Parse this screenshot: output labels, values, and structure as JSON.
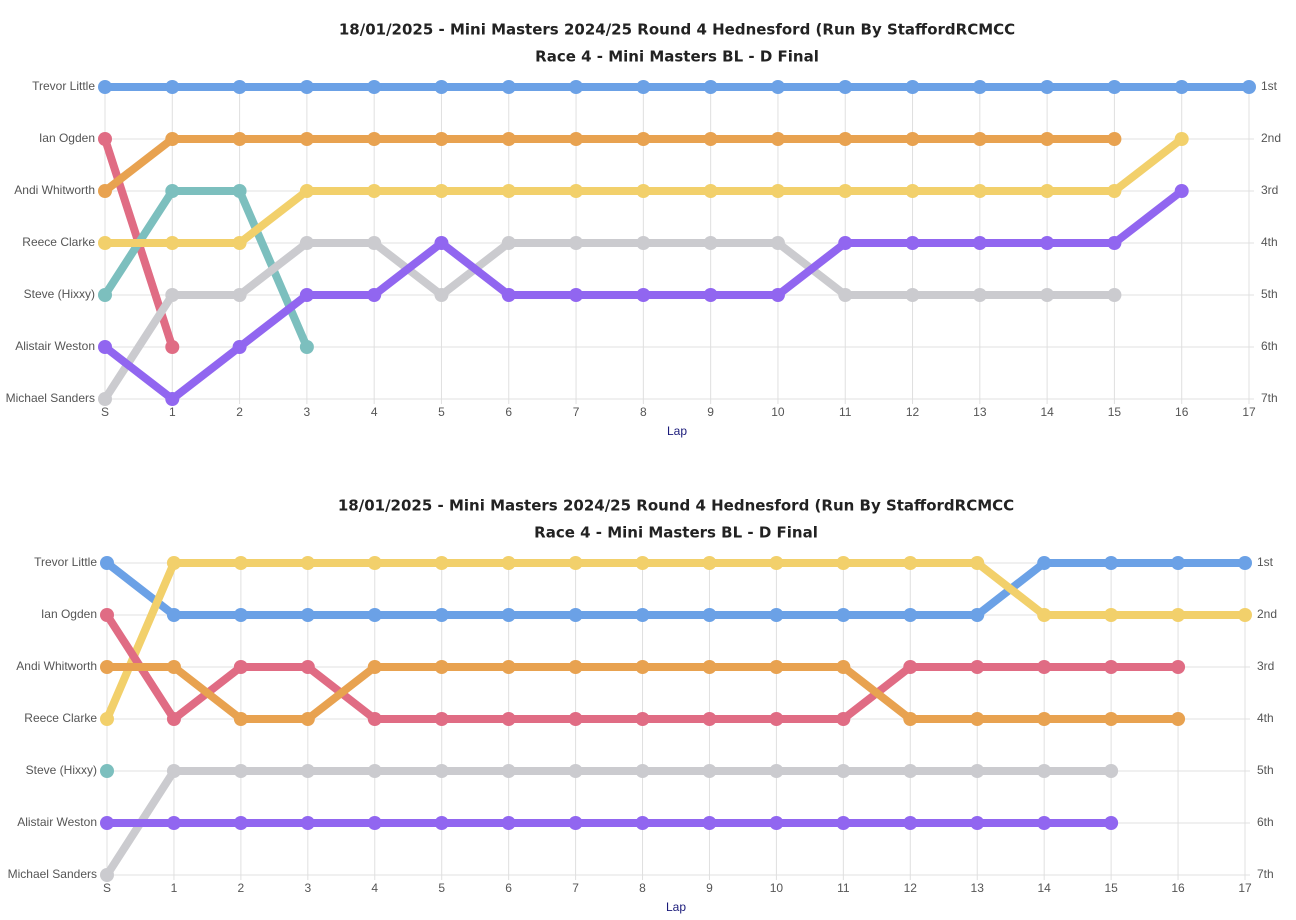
{
  "chart_data": [
    {
      "type": "line",
      "title": "18/01/2025 - Mini Masters 2024/25 Round 4 Hednesford (Run By StaffordRCMCC",
      "subtitle": "Race 4 - Mini Masters BL - D Final",
      "x_label": "Lap",
      "categories": [
        "S",
        "1",
        "2",
        "3",
        "4",
        "5",
        "6",
        "7",
        "8",
        "9",
        "10",
        "11",
        "12",
        "13",
        "14",
        "15",
        "16",
        "17"
      ],
      "ylim": [
        7,
        1
      ],
      "yticks": [
        {
          "value": 1,
          "label": "Trevor Little"
        },
        {
          "value": 2,
          "label": "Ian Ogden"
        },
        {
          "value": 3,
          "label": "Andi Whitworth"
        },
        {
          "value": 4,
          "label": "Reece Clarke"
        },
        {
          "value": 5,
          "label": "Steve (Hixxy)"
        },
        {
          "value": 6,
          "label": "Alistair Weston"
        },
        {
          "value": 7,
          "label": "Michael Sanders"
        }
      ],
      "y2lim": [
        7,
        1
      ],
      "y2ticks": [
        {
          "value": 1,
          "label": "1st"
        },
        {
          "value": 2,
          "label": "2nd"
        },
        {
          "value": 3,
          "label": "3rd"
        },
        {
          "value": 4,
          "label": "4th"
        },
        {
          "value": 5,
          "label": "5th"
        },
        {
          "value": 6,
          "label": "6th"
        },
        {
          "value": 7,
          "label": "7th"
        }
      ],
      "grid": true,
      "series": [
        {
          "color": "#6ba1e6",
          "values": [
            1,
            1,
            1,
            1,
            1,
            1,
            1,
            1,
            1,
            1,
            1,
            1,
            1,
            1,
            1,
            1,
            1,
            1
          ]
        },
        {
          "color": "#e06c84",
          "values": [
            2,
            6,
            null,
            null,
            null,
            null,
            null,
            null,
            null,
            null,
            null,
            null,
            null,
            null,
            null,
            null,
            null,
            null
          ]
        },
        {
          "color": "#e8a250",
          "values": [
            3,
            2,
            2,
            2,
            2,
            2,
            2,
            2,
            2,
            2,
            2,
            2,
            2,
            2,
            2,
            2,
            null,
            null
          ]
        },
        {
          "color": "#7cbfbe",
          "values": [
            5,
            3,
            3,
            6,
            null,
            null,
            null,
            null,
            null,
            null,
            null,
            null,
            null,
            null,
            null,
            null,
            null,
            null
          ]
        },
        {
          "color": "#f2d06b",
          "values": [
            4,
            4,
            4,
            3,
            3,
            3,
            3,
            3,
            3,
            3,
            3,
            3,
            3,
            3,
            3,
            3,
            2,
            null
          ]
        },
        {
          "color": "#cbcbcf",
          "values": [
            7,
            5,
            5,
            4,
            4,
            5,
            4,
            4,
            4,
            4,
            4,
            5,
            5,
            5,
            5,
            5,
            null,
            null
          ]
        },
        {
          "color": "#9166f0",
          "values": [
            6,
            7,
            6,
            5,
            5,
            4,
            5,
            5,
            5,
            5,
            5,
            4,
            4,
            4,
            4,
            4,
            3,
            null
          ]
        }
      ]
    },
    {
      "type": "line",
      "title": "18/01/2025 - Mini Masters 2024/25 Round 4 Hednesford (Run By StaffordRCMCC",
      "subtitle": "Race 4 - Mini Masters BL - D Final",
      "x_label": "Lap",
      "categories": [
        "S",
        "1",
        "2",
        "3",
        "4",
        "5",
        "6",
        "7",
        "8",
        "9",
        "10",
        "11",
        "12",
        "13",
        "14",
        "15",
        "16",
        "17"
      ],
      "ylim": [
        7,
        1
      ],
      "yticks": [
        {
          "value": 1,
          "label": "Trevor Little"
        },
        {
          "value": 2,
          "label": "Ian Ogden"
        },
        {
          "value": 3,
          "label": "Andi Whitworth"
        },
        {
          "value": 4,
          "label": "Reece Clarke"
        },
        {
          "value": 5,
          "label": "Steve (Hixxy)"
        },
        {
          "value": 6,
          "label": "Alistair Weston"
        },
        {
          "value": 7,
          "label": "Michael Sanders"
        }
      ],
      "y2lim": [
        7,
        1
      ],
      "y2ticks": [
        {
          "value": 1,
          "label": "1st"
        },
        {
          "value": 2,
          "label": "2nd"
        },
        {
          "value": 3,
          "label": "3rd"
        },
        {
          "value": 4,
          "label": "4th"
        },
        {
          "value": 5,
          "label": "5th"
        },
        {
          "value": 6,
          "label": "6th"
        },
        {
          "value": 7,
          "label": "7th"
        }
      ],
      "grid": true,
      "series": [
        {
          "color": "#6ba1e6",
          "values": [
            1,
            2,
            2,
            2,
            2,
            2,
            2,
            2,
            2,
            2,
            2,
            2,
            2,
            2,
            1,
            1,
            1,
            1
          ]
        },
        {
          "color": "#f2d06b",
          "values": [
            4,
            1,
            1,
            1,
            1,
            1,
            1,
            1,
            1,
            1,
            1,
            1,
            1,
            1,
            2,
            2,
            2,
            2
          ]
        },
        {
          "color": "#e06c84",
          "values": [
            2,
            4,
            3,
            3,
            4,
            4,
            4,
            4,
            4,
            4,
            4,
            4,
            3,
            3,
            3,
            3,
            3,
            null
          ]
        },
        {
          "color": "#e8a250",
          "values": [
            3,
            3,
            4,
            4,
            3,
            3,
            3,
            3,
            3,
            3,
            3,
            3,
            4,
            4,
            4,
            4,
            4,
            null
          ]
        },
        {
          "color": "#7cbfbe",
          "values": [
            5,
            null,
            null,
            null,
            null,
            null,
            null,
            null,
            null,
            null,
            null,
            null,
            null,
            null,
            null,
            null,
            null,
            null
          ]
        },
        {
          "color": "#cbcbcf",
          "values": [
            7,
            5,
            5,
            5,
            5,
            5,
            5,
            5,
            5,
            5,
            5,
            5,
            5,
            5,
            5,
            5,
            null,
            null
          ]
        },
        {
          "color": "#9166f0",
          "values": [
            6,
            6,
            6,
            6,
            6,
            6,
            6,
            6,
            6,
            6,
            6,
            6,
            6,
            6,
            6,
            6,
            null,
            null
          ]
        }
      ]
    }
  ]
}
